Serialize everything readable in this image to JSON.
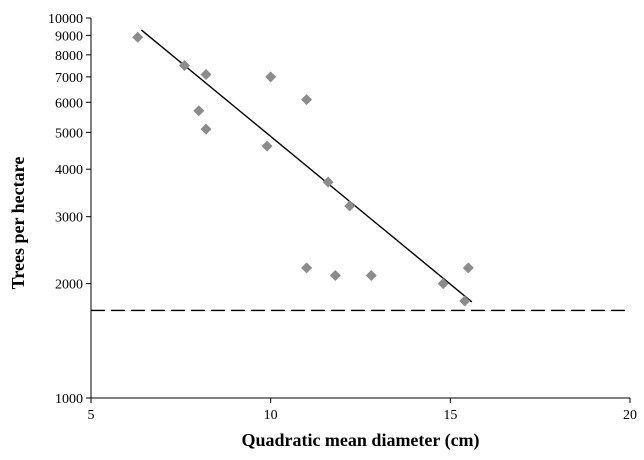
{
  "chart_data": {
    "type": "scatter",
    "title": "",
    "xlabel": "Quadratic mean diameter (cm)",
    "ylabel": "Trees per hectare",
    "x_scale": "linear",
    "y_scale": "log",
    "xlim": [
      5,
      20
    ],
    "ylim": [
      1000,
      10000
    ],
    "x_ticks": [
      5,
      10,
      15,
      20
    ],
    "x_tick_labels": [
      "5",
      "10",
      "15",
      "20"
    ],
    "y_ticks": [
      1000,
      2000,
      3000,
      4000,
      5000,
      6000,
      7000,
      8000,
      9000,
      10000
    ],
    "y_tick_labels": [
      "1000",
      "2000",
      "3000",
      "4000",
      "5000",
      "6000",
      "7000",
      "8000",
      "9000",
      "10000"
    ],
    "grid": false,
    "legend": "none",
    "series": [
      {
        "marker": "diamond",
        "color": "#8c8c8c",
        "points": [
          {
            "x": 6.3,
            "y": 8900
          },
          {
            "x": 7.6,
            "y": 7500
          },
          {
            "x": 8.2,
            "y": 7100
          },
          {
            "x": 8.0,
            "y": 5700
          },
          {
            "x": 8.2,
            "y": 5100
          },
          {
            "x": 9.9,
            "y": 4600
          },
          {
            "x": 10.0,
            "y": 7000
          },
          {
            "x": 11.0,
            "y": 6100
          },
          {
            "x": 11.6,
            "y": 3700
          },
          {
            "x": 12.2,
            "y": 3200
          },
          {
            "x": 11.0,
            "y": 2200
          },
          {
            "x": 11.8,
            "y": 2100
          },
          {
            "x": 12.8,
            "y": 2100
          },
          {
            "x": 14.8,
            "y": 2000
          },
          {
            "x": 15.4,
            "y": 1800
          },
          {
            "x": 15.5,
            "y": 2200
          }
        ]
      }
    ],
    "trend_line": {
      "style": "solid",
      "color": "#000000",
      "from": {
        "x": 6.4,
        "y": 9300
      },
      "to": {
        "x": 15.6,
        "y": 1790
      }
    },
    "reference_line": {
      "style": "dashed",
      "color": "#000000",
      "y": 1700
    }
  }
}
